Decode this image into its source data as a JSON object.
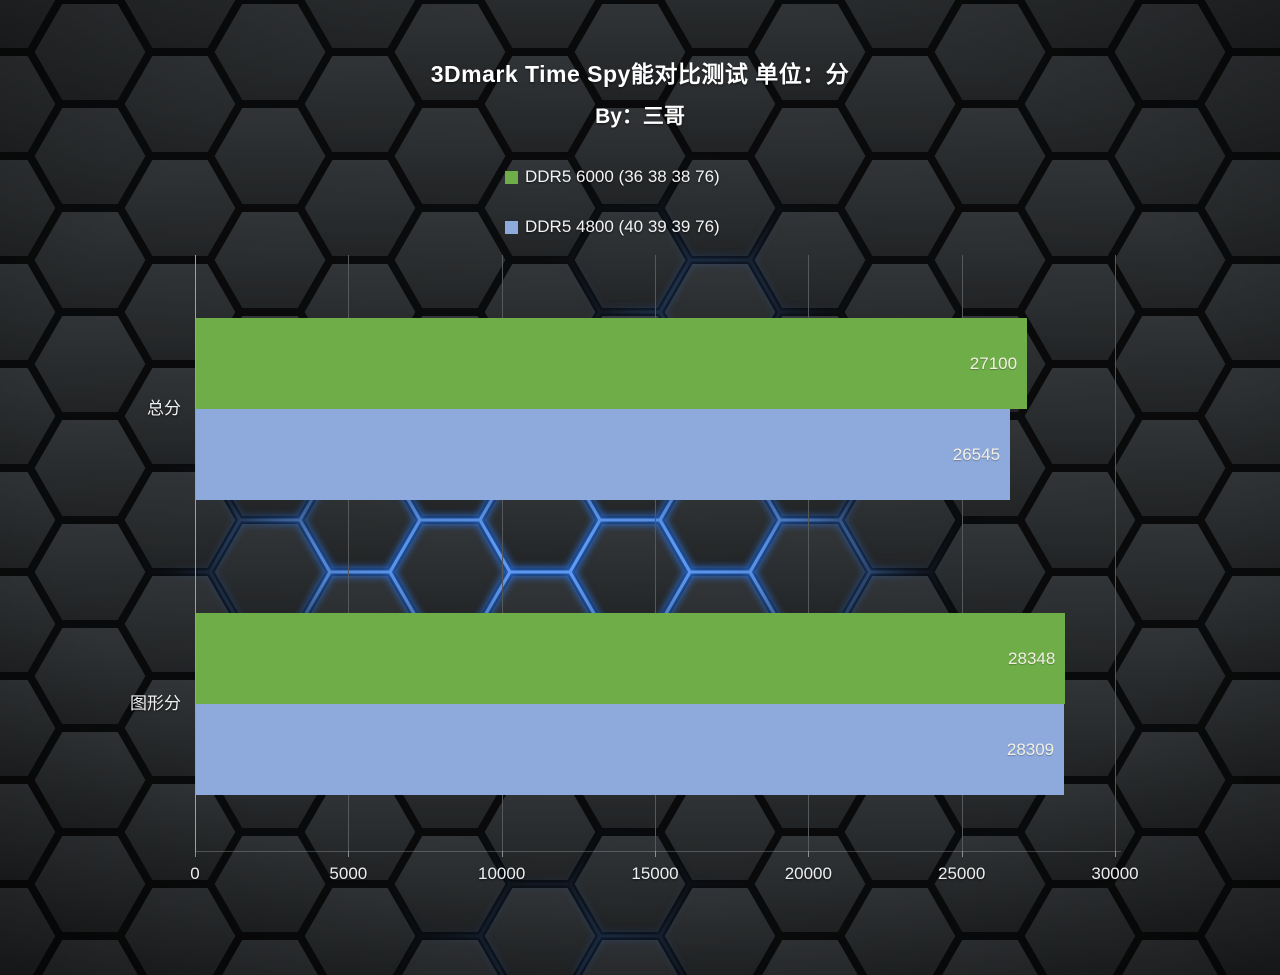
{
  "header": {
    "title": "3Dmark Time Spy能对比测试 单位：分",
    "subtitle": "By：三哥"
  },
  "colors": {
    "series_green": "#6fad49",
    "series_blue": "#8ea9db",
    "glow_blue": "#2e7df5",
    "text_primary": "#ffffff",
    "value_label": "#f2f0e4"
  },
  "chart_data": {
    "type": "bar",
    "orientation": "horizontal",
    "title": "3Dmark Time Spy能对比测试 单位：分",
    "subtitle": "By：三哥",
    "categories": [
      "总分",
      "图形分"
    ],
    "series": [
      {
        "name": "DDR5 6000 (36 38 38 76)",
        "color": "#6fad49",
        "values": [
          27100,
          28348
        ]
      },
      {
        "name": "DDR5 4800 (40 39 39 76)",
        "color": "#8ea9db",
        "values": [
          26545,
          28309
        ]
      }
    ],
    "xlim": [
      0,
      30000
    ],
    "xticks": [
      0,
      5000,
      10000,
      15000,
      20000,
      25000,
      30000
    ],
    "grid": true,
    "legend_position": "top-center",
    "value_labels": "inside-end"
  }
}
